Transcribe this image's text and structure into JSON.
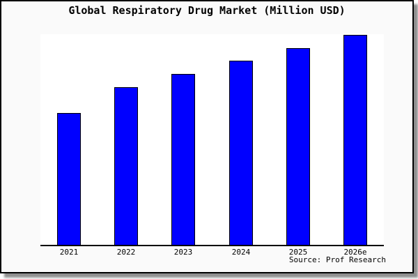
{
  "chart_data": {
    "type": "bar",
    "title": "Global Respiratory Drug Market (Million USD)",
    "categories": [
      "2021",
      "2022",
      "2023",
      "2024",
      "2025",
      "2026e"
    ],
    "values": [
      190,
      227,
      246,
      265,
      283,
      302
    ],
    "value_note": "no y-axis ticks or data labels shown; values estimated as relative units proportional to bar heights",
    "xlabel": "",
    "ylabel": "",
    "ylim": [
      0,
      303
    ],
    "grid": false,
    "legend": false,
    "y_axis_visible": false,
    "bar_color": "#0000ff",
    "bar_border_color": "#000000"
  },
  "source": {
    "text": "Source: Prof Research"
  },
  "colors": {
    "figure_background": "#fafafa",
    "plot_background": "#ffffff",
    "axis": "#000000",
    "frame_border": "#000000",
    "shadow": "#8f8f8f"
  }
}
